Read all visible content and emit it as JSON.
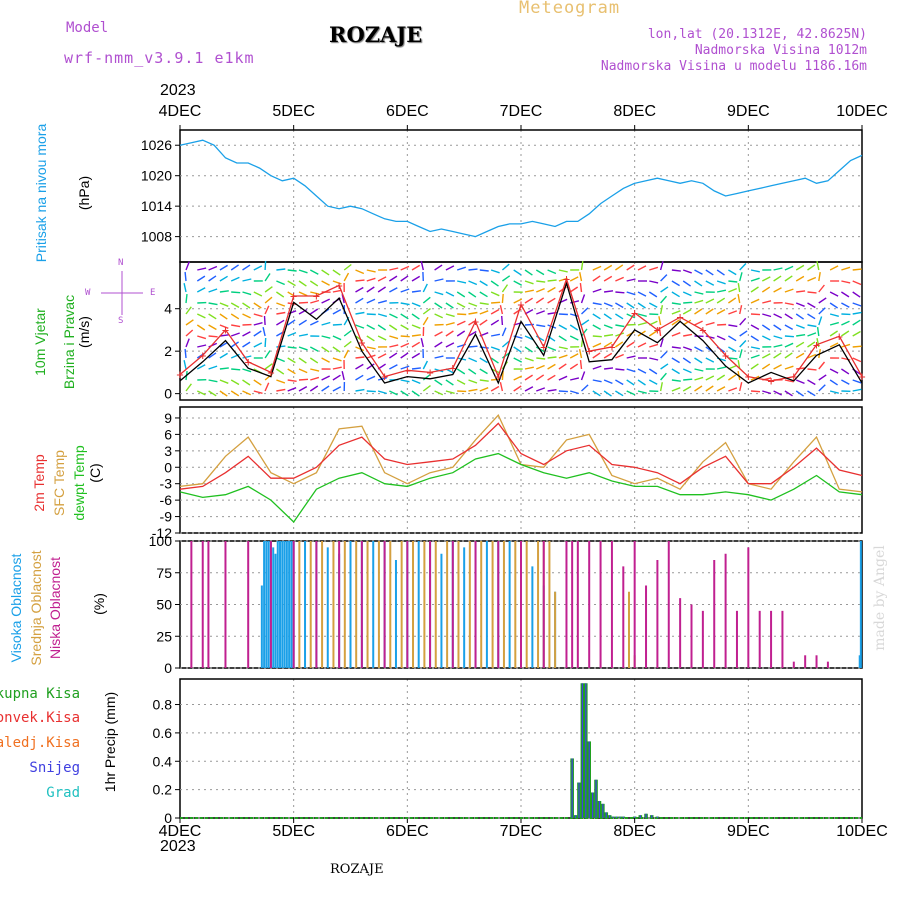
{
  "header": {
    "model_label": "Model",
    "model_name": "wrf-nmm_v3.9.1 e1km",
    "location": "ROZAJE",
    "meteogram": "Meteogram",
    "lonlat": "lon,lat (20.1312E, 42.8625N)",
    "elevation": "Nadmorska Visina 1012m",
    "model_elevation": "Nadmorska Visina u modelu 1186.16m",
    "watermark": "made by Angel",
    "footer": "ROZAJE"
  },
  "colors": {
    "pressure": "#1aa0e8",
    "wind_speed": "#000000",
    "gust": "#e83030",
    "t2m": "#e83030",
    "sfc": "#d4a040",
    "dewpt": "#20c020",
    "high_cloud": "#1aa0e8",
    "mid_cloud": "#d4a040",
    "low_cloud": "#c02090",
    "precip_total": "#20a020",
    "precip_conv": "#e83030",
    "precip_freezing": "#f07020",
    "snow": "#4040e0",
    "graupel": "#20c0c0"
  },
  "chart_data": [
    {
      "type": "line",
      "panel": "pressure",
      "label": "Pritisak na nivou mora",
      "unit_label": "(hPa)",
      "year_top": "2023",
      "x_ticks": [
        "4DEC",
        "5DEC",
        "6DEC",
        "7DEC",
        "8DEC",
        "9DEC",
        "10DEC"
      ],
      "ylim": [
        1003,
        1029
      ],
      "yticks": [
        "1008",
        "1014",
        "1020",
        "1026"
      ],
      "x": [
        0,
        0.1,
        0.2,
        0.3,
        0.4,
        0.5,
        0.6,
        0.7,
        0.8,
        0.9,
        1.0,
        1.1,
        1.2,
        1.3,
        1.4,
        1.5,
        1.6,
        1.7,
        1.8,
        1.9,
        2.0,
        2.1,
        2.2,
        2.3,
        2.4,
        2.5,
        2.6,
        2.7,
        2.8,
        2.9,
        3.0,
        3.1,
        3.2,
        3.3,
        3.4,
        3.5,
        3.6,
        3.7,
        3.8,
        3.9,
        4.0,
        4.1,
        4.2,
        4.3,
        4.4,
        4.5,
        4.6,
        4.7,
        4.8,
        4.9,
        5.0,
        5.1,
        5.2,
        5.3,
        5.4,
        5.5,
        5.6,
        5.7,
        5.8,
        5.9,
        6.0
      ],
      "series": [
        {
          "values": [
            1026,
            1026.5,
            1027,
            1026,
            1023.5,
            1022.5,
            1022.5,
            1021.5,
            1020,
            1019,
            1019.5,
            1018,
            1016,
            1014,
            1013.5,
            1014,
            1013.5,
            1012.5,
            1011.5,
            1011,
            1011,
            1010,
            1009,
            1009.5,
            1009,
            1008.5,
            1008,
            1009,
            1010,
            1010.5,
            1010.5,
            1011,
            1010.5,
            1010,
            1011,
            1011,
            1012.5,
            1014.5,
            1016,
            1017.5,
            1018.5,
            1019,
            1019.5,
            1019,
            1018.5,
            1019,
            1018.5,
            1017,
            1016,
            1016.5,
            1017,
            1017.5,
            1018,
            1018.5,
            1019,
            1019.5,
            1018.5,
            1019,
            1021,
            1023,
            1024
          ]
        }
      ]
    },
    {
      "type": "line",
      "panel": "wind",
      "label_line1": "10m Vjetar",
      "label_line2": "Brzina i Pravac",
      "unit_label": "(m/s)",
      "compass": [
        "N",
        "W",
        "E",
        "S"
      ],
      "ylim": [
        -0.3,
        6.2
      ],
      "yticks": [
        "0",
        "2",
        "4"
      ],
      "x": [
        0,
        0.2,
        0.4,
        0.6,
        0.8,
        1.0,
        1.2,
        1.4,
        1.6,
        1.8,
        2.0,
        2.2,
        2.4,
        2.6,
        2.8,
        3.0,
        3.2,
        3.4,
        3.6,
        3.8,
        4.0,
        4.2,
        4.4,
        4.6,
        4.8,
        5.0,
        5.2,
        5.4,
        5.6,
        5.8,
        6.0
      ],
      "series": [
        {
          "name": "speed",
          "values": [
            0.6,
            1.5,
            2.5,
            1.2,
            0.8,
            4.3,
            3.5,
            4.5,
            2.0,
            0.5,
            0.8,
            0.7,
            0.9,
            2.8,
            0.5,
            3.4,
            1.8,
            5.2,
            1.5,
            1.6,
            3.0,
            2.4,
            3.4,
            2.5,
            1.3,
            0.5,
            1.0,
            0.6,
            1.8,
            2.3,
            0.5
          ]
        },
        {
          "name": "gust",
          "values": [
            0.9,
            1.8,
            3.0,
            1.5,
            1.0,
            4.6,
            4.6,
            5.1,
            2.4,
            0.8,
            1.1,
            1.0,
            1.2,
            3.4,
            0.8,
            4.2,
            2.2,
            5.4,
            2.0,
            2.2,
            3.8,
            3.0,
            3.6,
            3.0,
            1.8,
            0.8,
            0.6,
            0.8,
            2.3,
            2.7,
            0.8
          ]
        }
      ]
    },
    {
      "type": "line",
      "panel": "temperature",
      "label_2m": "2m Temp",
      "label_sfc": "SFC Temp",
      "label_dewpt": "dewpt Temp",
      "unit_label": "(C)",
      "ylim": [
        -12,
        11
      ],
      "yticks": [
        "-12",
        "-9",
        "-6",
        "-3",
        "0",
        "3",
        "6",
        "9"
      ],
      "x": [
        0,
        0.2,
        0.4,
        0.6,
        0.8,
        1.0,
        1.2,
        1.4,
        1.6,
        1.8,
        2.0,
        2.2,
        2.4,
        2.6,
        2.8,
        3.0,
        3.2,
        3.4,
        3.6,
        3.8,
        4.0,
        4.2,
        4.4,
        4.6,
        4.8,
        5.0,
        5.2,
        5.4,
        5.6,
        5.8,
        6.0
      ],
      "series": [
        {
          "name": "2m Temp",
          "values": [
            -4,
            -3.5,
            -1,
            2,
            -2,
            -2,
            0,
            4,
            5.5,
            1.5,
            0.5,
            1,
            1.5,
            4,
            8,
            2.5,
            0.5,
            3,
            4,
            0.5,
            0,
            -1,
            -3,
            0,
            2,
            -3,
            -3,
            0,
            3.5,
            -0.5,
            -1.5
          ]
        },
        {
          "name": "SFC Temp",
          "values": [
            -3.5,
            -3,
            2,
            5.5,
            -1,
            -3,
            -1,
            7,
            7.5,
            -1,
            -3,
            -1,
            0,
            5,
            9.5,
            0.5,
            0,
            5,
            6,
            -1.5,
            -3,
            -2,
            -4,
            1,
            4.5,
            -3,
            -4,
            1,
            5.5,
            -4,
            -4.5
          ]
        },
        {
          "name": "dewpt Temp",
          "values": [
            -4.5,
            -5.5,
            -5,
            -3.5,
            -6,
            -10,
            -4,
            -2,
            -1,
            -3,
            -3.5,
            -2,
            -1,
            1.5,
            2.5,
            0.5,
            -1,
            -2,
            -1,
            -2.5,
            -3.5,
            -3.5,
            -5,
            -5,
            -4.5,
            -5,
            -6,
            -4,
            -1.5,
            -4.5,
            -5
          ]
        }
      ]
    },
    {
      "type": "bar",
      "panel": "clouds",
      "label_high": "Visoka Oblacnost",
      "label_mid": "Srednja Oblacnost",
      "label_low": "Niska Oblacnost",
      "unit_label": "(%)",
      "ylim": [
        0,
        100
      ],
      "yticks": [
        "0",
        "25",
        "50",
        "75",
        "100"
      ],
      "high_x": [
        0.72,
        0.74,
        0.76,
        0.78,
        0.8,
        0.82,
        0.84,
        0.86,
        0.88,
        0.9,
        0.92,
        0.94,
        0.96,
        0.98,
        1.0,
        1.1,
        1.2,
        1.3,
        1.4,
        1.5,
        1.6,
        1.7,
        1.8,
        1.9,
        2.0,
        2.1,
        2.2,
        2.3,
        2.4,
        2.5,
        2.6,
        2.7,
        2.8,
        2.9,
        3.0,
        3.1,
        3.2,
        3.3,
        5.98,
        5.99
      ],
      "high_v": [
        65,
        100,
        100,
        100,
        100,
        95,
        90,
        100,
        100,
        100,
        100,
        100,
        100,
        100,
        100,
        100,
        100,
        95,
        90,
        100,
        100,
        100,
        100,
        85,
        100,
        100,
        100,
        90,
        100,
        95,
        100,
        100,
        100,
        100,
        100,
        80,
        65,
        60,
        10,
        100
      ],
      "mid_x": [
        1.05,
        1.15,
        1.25,
        1.35,
        1.45,
        1.55,
        1.65,
        1.75,
        1.85,
        1.95,
        2.05,
        2.15,
        2.25,
        2.35,
        2.45,
        2.55,
        2.65,
        2.75,
        2.85,
        2.95,
        3.05,
        3.15,
        3.2,
        3.25,
        3.3,
        3.95,
        4.0
      ],
      "mid_v": [
        100,
        100,
        100,
        100,
        100,
        100,
        100,
        100,
        100,
        100,
        100,
        100,
        100,
        100,
        100,
        100,
        100,
        100,
        100,
        100,
        100,
        100,
        100,
        100,
        60,
        60,
        10
      ],
      "low_x": [
        0.1,
        0.2,
        0.25,
        0.4,
        0.6,
        0.8,
        1.0,
        1.2,
        1.4,
        1.6,
        1.8,
        2.0,
        2.2,
        2.4,
        2.6,
        2.8,
        3.0,
        3.2,
        3.4,
        3.45,
        3.5,
        3.6,
        3.7,
        3.8,
        3.9,
        4.0,
        4.1,
        4.2,
        4.3,
        4.4,
        4.5,
        4.6,
        4.7,
        4.8,
        4.9,
        5.0,
        5.1,
        5.2,
        5.3,
        5.4,
        5.5,
        5.6,
        5.7
      ],
      "low_v": [
        100,
        100,
        100,
        100,
        100,
        100,
        100,
        100,
        100,
        100,
        100,
        100,
        100,
        100,
        100,
        100,
        100,
        100,
        100,
        100,
        100,
        100,
        100,
        100,
        80,
        100,
        65,
        85,
        100,
        55,
        50,
        45,
        85,
        90,
        45,
        95,
        45,
        45,
        45,
        5,
        10,
        10,
        5
      ]
    },
    {
      "type": "bar",
      "panel": "precip",
      "labels": [
        "Ukupna Kisa",
        "Konvek.Kisa",
        "Zaledj.Kisa",
        "Snijeg",
        "Grad"
      ],
      "unit_label": "1hr Precip (mm)",
      "x_ticks": [
        "4DEC",
        "5DEC",
        "6DEC",
        "7DEC",
        "8DEC",
        "9DEC",
        "10DEC"
      ],
      "year_bottom": "2023",
      "ylim": [
        0,
        0.98
      ],
      "yticks": [
        "0",
        "0.2",
        "0.4",
        "0.6",
        "0.8"
      ],
      "x": [
        3.45,
        3.48,
        3.51,
        3.54,
        3.57,
        3.6,
        3.63,
        3.66,
        3.69,
        3.72,
        3.75,
        3.78,
        3.81,
        3.84,
        3.87,
        3.9,
        4.0,
        4.05,
        4.1,
        4.15,
        4.2
      ],
      "values": [
        0.42,
        0.02,
        0.25,
        0.95,
        0.95,
        0.54,
        0.18,
        0.27,
        0.12,
        0.1,
        0.04,
        0.02,
        0.01,
        0.01,
        0.01,
        0.01,
        0.01,
        0.02,
        0.03,
        0.02,
        0.01
      ]
    }
  ]
}
